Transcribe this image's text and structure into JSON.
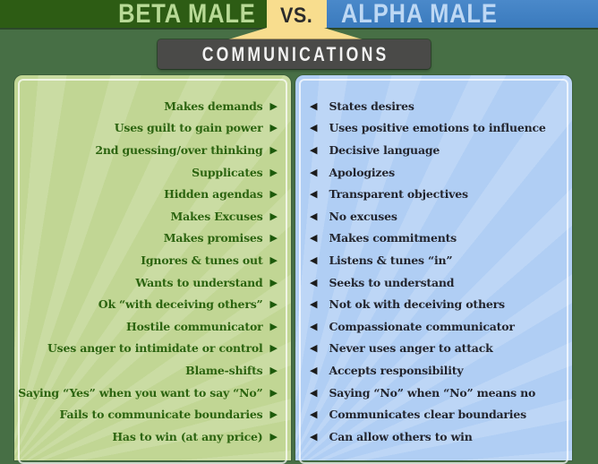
{
  "header": {
    "beta_label": "BETA MALE",
    "vs_label": "VS.",
    "alpha_label": "ALPHA MALE"
  },
  "section": {
    "title": "COMMUNICATIONS"
  },
  "icons": {
    "beta_arrow_icon": "▶",
    "alpha_arrow_icon": "◀"
  },
  "colors": {
    "beta_band_bg": "#2d5c14",
    "beta_band_text": "#b8da96",
    "alpha_band_bg": "#3f7fc1",
    "alpha_band_text": "#bdd8f4",
    "vs_badge_bg": "#f8dd8e",
    "vs_badge_text": "#2b2b2b",
    "page_bg": "#476f45",
    "section_box_bg": "#4a4a48",
    "section_box_text": "#f2f2f2",
    "beta_panel_bg": "#c1d694",
    "beta_item_text": "#2c6410",
    "beta_arrow": "#1d5a0b",
    "alpha_panel_bg": "#b0cef4",
    "alpha_item_text": "#23252e",
    "alpha_arrow": "#1c1c1c"
  },
  "comparison": {
    "beta_items": [
      "Makes demands",
      "Uses guilt to gain power",
      "2nd guessing/over thinking",
      "Supplicates",
      "Hidden agendas",
      "Makes Excuses",
      "Makes promises",
      "Ignores & tunes out",
      "Wants to understand",
      "Ok “with deceiving others”",
      "Hostile communicator",
      "Uses anger to intimidate or control",
      "Blame-shifts",
      "Saying “Yes” when you want to say “No”",
      "Fails to communicate boundaries",
      "Has to win (at any price)"
    ],
    "alpha_items": [
      "States desires",
      "Uses positive emotions to influence",
      "Decisive language",
      "Apologizes",
      "Transparent objectives",
      "No excuses",
      "Makes commitments",
      "Listens & tunes “in”",
      "Seeks to understand",
      "Not ok with deceiving others",
      "Compassionate communicator",
      "Never uses anger to attack",
      "Accepts responsibility",
      "Saying “No” when “No” means no",
      "Communicates clear boundaries",
      "Can allow others to win"
    ]
  }
}
